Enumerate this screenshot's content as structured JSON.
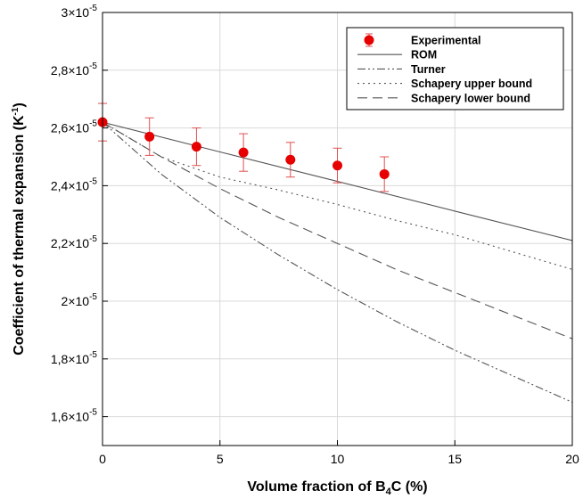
{
  "chart_data": {
    "type": "line",
    "title": "",
    "xlabel": "Volume fraction of B4C (%)",
    "xlabel_parts": {
      "pre": "Volume fraction of B",
      "sub": "4",
      "post": "C (%)"
    },
    "ylabel": "Coefficient of thermal expansion (K-1)",
    "ylabel_parts": {
      "pre": "Coefficient of thermal expansion (K",
      "sup": "-1",
      "post": ")"
    },
    "xlim": [
      0,
      20
    ],
    "ylim": [
      1.5e-05,
      3e-05
    ],
    "grid": true,
    "legend_position": "top-right",
    "x_ticks": [
      0,
      5,
      10,
      15,
      20
    ],
    "x_tick_labels": [
      "0",
      "5",
      "10",
      "15",
      "20"
    ],
    "y_ticks": [
      {
        "value": 1.6e-05,
        "mantissa": "1,6×10",
        "exp": "-5"
      },
      {
        "value": 1.8e-05,
        "mantissa": "1,8×10",
        "exp": "-5"
      },
      {
        "value": 2e-05,
        "mantissa": "2×10",
        "exp": "-5"
      },
      {
        "value": 2.2e-05,
        "mantissa": "2,2×10",
        "exp": "-5"
      },
      {
        "value": 2.4e-05,
        "mantissa": "2,4×10",
        "exp": "-5"
      },
      {
        "value": 2.6e-05,
        "mantissa": "2,6×10",
        "exp": "-5"
      },
      {
        "value": 2.8e-05,
        "mantissa": "2,8×10",
        "exp": "-5"
      },
      {
        "value": 3e-05,
        "mantissa": "3×10",
        "exp": "-5"
      }
    ],
    "series": [
      {
        "name": "Experimental",
        "kind": "errorbar",
        "color": "#e60000",
        "errorbar_color": "#e05050",
        "x": [
          0,
          2,
          4,
          6,
          8,
          10,
          12
        ],
        "y": [
          2.62e-05,
          2.57e-05,
          2.535e-05,
          2.515e-05,
          2.49e-05,
          2.47e-05,
          2.44e-05
        ],
        "yerr": [
          6.5e-07,
          6.5e-07,
          6.5e-07,
          6.5e-07,
          6e-07,
          6e-07,
          6e-07
        ]
      },
      {
        "name": "ROM",
        "kind": "line",
        "style": "solid",
        "color": "#555555",
        "x": [
          0,
          5,
          10,
          15,
          20
        ],
        "y": [
          2.62e-05,
          2.517e-05,
          2.415e-05,
          2.312e-05,
          2.21e-05
        ]
      },
      {
        "name": "Turner",
        "kind": "line",
        "style": "dashdotdot",
        "color": "#555555",
        "x": [
          0,
          2.5,
          5,
          7.5,
          10,
          12.5,
          15,
          17.5,
          20
        ],
        "y": [
          2.62e-05,
          2.44e-05,
          2.29e-05,
          2.16e-05,
          2.04e-05,
          1.93e-05,
          1.83e-05,
          1.74e-05,
          1.65e-05
        ]
      },
      {
        "name": "Schapery upper bound",
        "kind": "line",
        "style": "dotted",
        "color": "#555555",
        "x": [
          0,
          2.5,
          5,
          7.5,
          10,
          12.5,
          15,
          17.5,
          20
        ],
        "y": [
          2.62e-05,
          2.5e-05,
          2.43e-05,
          2.385e-05,
          2.335e-05,
          2.28e-05,
          2.23e-05,
          2.17e-05,
          2.11e-05
        ]
      },
      {
        "name": "Schapery lower bound",
        "kind": "line",
        "style": "dashed",
        "color": "#555555",
        "x": [
          0,
          2.5,
          5,
          7.5,
          10,
          12.5,
          15,
          17.5,
          20
        ],
        "y": [
          2.62e-05,
          2.5e-05,
          2.39e-05,
          2.29e-05,
          2.2e-05,
          2.11e-05,
          2.03e-05,
          1.95e-05,
          1.87e-05
        ]
      }
    ]
  }
}
